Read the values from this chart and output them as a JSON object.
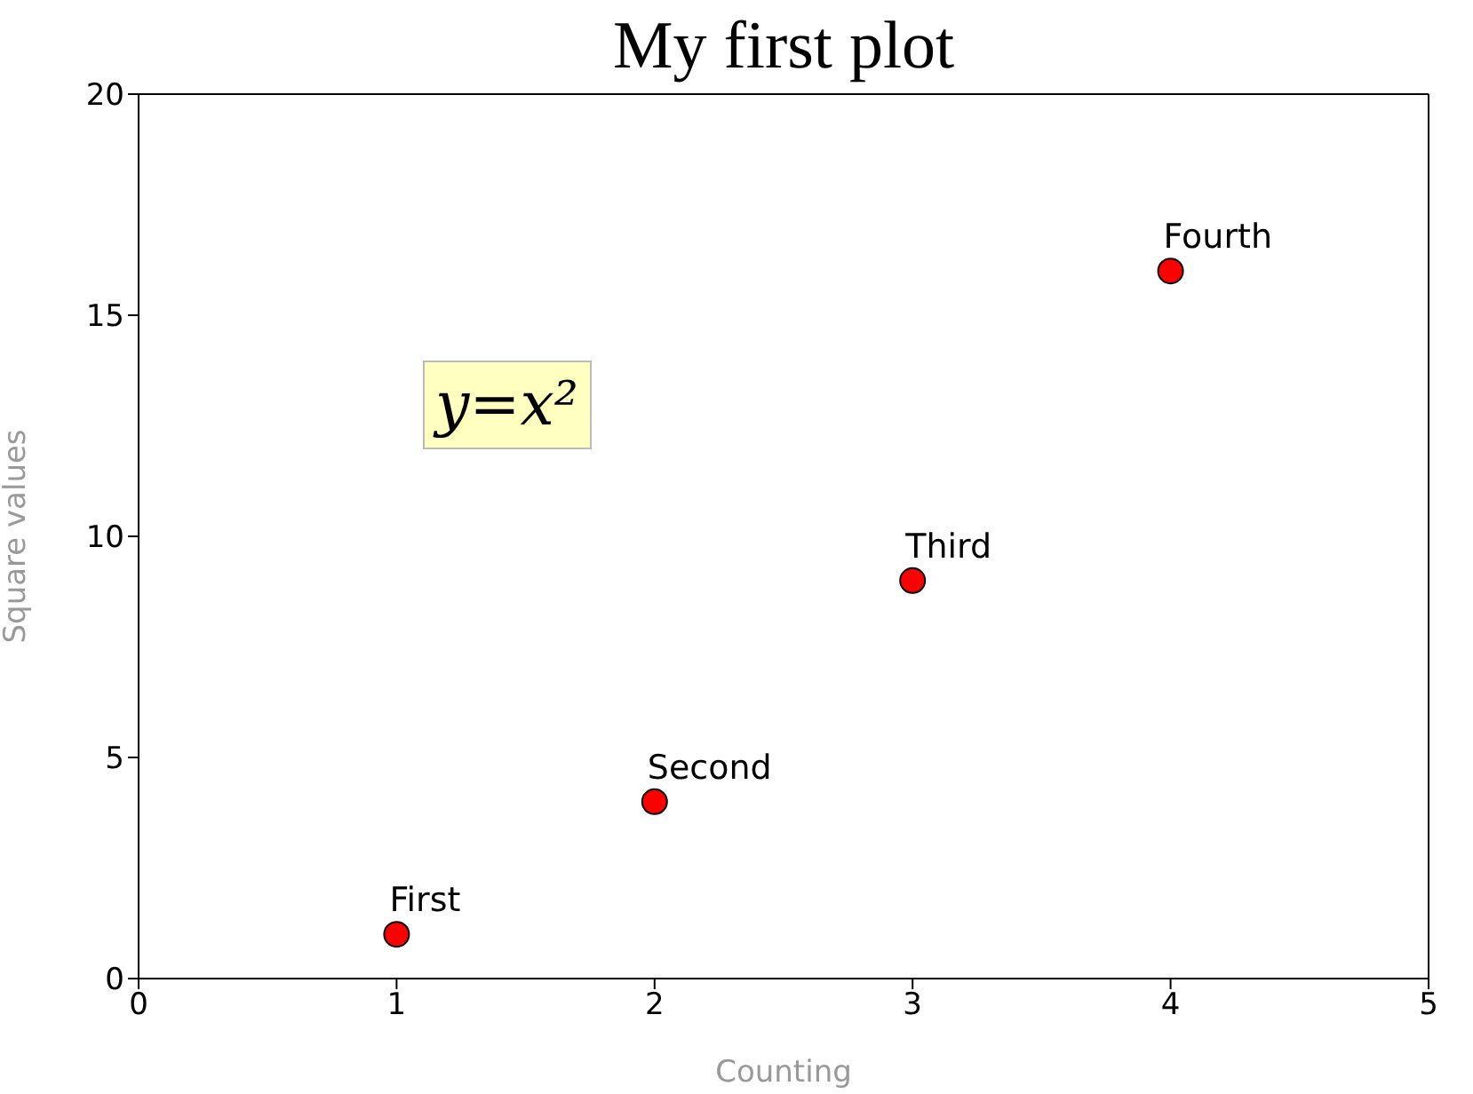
{
  "chart_data": {
    "type": "scatter",
    "title": "My first plot",
    "xlabel": "Counting",
    "ylabel": "Square values",
    "x": [
      1,
      2,
      3,
      4
    ],
    "series": [
      {
        "color": "#ff0000",
        "values": [
          1,
          4,
          9,
          16
        ]
      }
    ],
    "xlim": [
      0,
      5
    ],
    "xticks": [
      0,
      1,
      2,
      3,
      4,
      5
    ],
    "ylim": [
      0,
      20
    ],
    "yticks": [
      0,
      5,
      10,
      15,
      20
    ],
    "marker": "circle",
    "annotations": [
      {
        "text": "First",
        "x": 1,
        "y": 1
      },
      {
        "text": "Second",
        "x": 2,
        "y": 4
      },
      {
        "text": "Third",
        "x": 3,
        "y": 9
      },
      {
        "text": "Fourth",
        "x": 4,
        "y": 16
      },
      "y=x²"
    ]
  }
}
